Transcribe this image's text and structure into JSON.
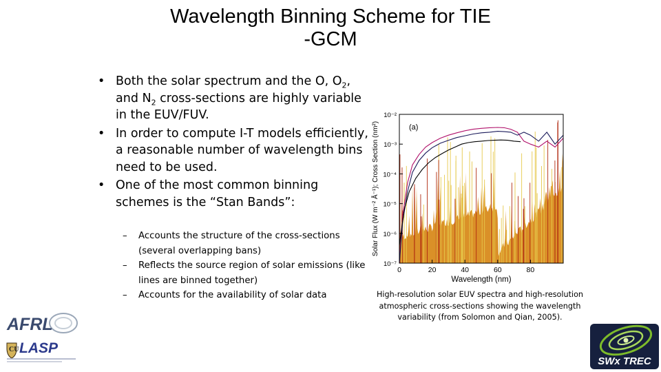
{
  "title": {
    "line1": "Wavelength Binning Scheme for TIE",
    "line2": "-GCM"
  },
  "bullets": [
    {
      "pre": "Both the solar spectrum and the O, O",
      "sub1": "2",
      "mid": ", and N",
      "sub2": "2",
      "post": " cross-sections are highly variable in the EUV/FUV."
    },
    {
      "text": "In order to compute I-T models efficiently, a reasonable number of wavelength bins need to be used."
    },
    {
      "text": "One of the most common binning schemes is the “Stan Bands”:"
    }
  ],
  "sub_bullets": [
    "Accounts the structure of the cross-sections (several overlapping bans)",
    "Reflects the source region of solar emissions (like lines are binned together)",
    "Accounts for the availability of solar data"
  ],
  "bullet_marker": "•",
  "dash_marker": "–",
  "chart_data": {
    "type": "line",
    "panel_label": "(a)",
    "xlabel": "Wavelength (nm)",
    "ylabel": "Solar Flux (W m⁻² Å⁻¹); Cross Section (nm²)",
    "xlim": [
      0,
      100
    ],
    "ylim_log10": [
      -7,
      -2
    ],
    "x_ticks": [
      "0",
      "20",
      "40",
      "60",
      "80"
    ],
    "y_ticks": [
      "10⁻²",
      "10⁻³",
      "10⁻⁴",
      "10⁻⁵",
      "10⁻⁶",
      "10⁻⁷"
    ],
    "series": [
      {
        "name": "cross-section (magenta)",
        "color": "#b0106a",
        "x": [
          0,
          2,
          5,
          8,
          12,
          16,
          20,
          25,
          30,
          35,
          40,
          45,
          50,
          55,
          60,
          64,
          68,
          72,
          76,
          80,
          85,
          90,
          95,
          100
        ],
        "log10y": [
          -7.0,
          -5.4,
          -4.3,
          -3.7,
          -3.35,
          -3.1,
          -2.95,
          -2.8,
          -2.7,
          -2.62,
          -2.55,
          -2.5,
          -2.47,
          -2.45,
          -2.44,
          -2.45,
          -2.5,
          -2.6,
          -2.9,
          -3.0,
          -3.1,
          -2.9,
          -3.1,
          -2.8
        ]
      },
      {
        "name": "cross-section (navy)",
        "color": "#1a1a5a",
        "x": [
          0,
          2,
          5,
          8,
          12,
          16,
          20,
          25,
          30,
          35,
          40,
          45,
          50,
          55,
          60,
          64,
          68,
          72,
          76,
          80,
          85,
          90,
          95,
          100
        ],
        "log10y": [
          -7.0,
          -5.6,
          -4.6,
          -3.95,
          -3.55,
          -3.3,
          -3.12,
          -2.97,
          -2.87,
          -2.78,
          -2.72,
          -2.66,
          -2.62,
          -2.6,
          -2.57,
          -2.58,
          -2.6,
          -2.7,
          -2.6,
          -2.7,
          -2.9,
          -2.6,
          -3.0,
          -2.7
        ]
      },
      {
        "name": "cross-section (black)",
        "color": "#000000",
        "x": [
          0,
          3,
          6,
          10,
          14,
          18,
          22,
          26,
          30,
          34,
          38,
          42,
          46,
          50,
          54,
          58,
          62,
          66,
          70,
          74
        ],
        "log10y": [
          -6.4,
          -5.2,
          -4.6,
          -4.15,
          -3.85,
          -3.62,
          -3.45,
          -3.32,
          -3.2,
          -3.1,
          -3.0,
          -2.95,
          -2.92,
          -2.9,
          -2.88,
          -2.87,
          -2.86,
          -2.87,
          -2.9,
          -2.92
        ]
      }
    ]
  },
  "caption": "High-resolution solar EUV spectra and high-resolution atmospheric cross-sections showing the wavelength variability (from Solomon and Qian, 2005).",
  "logos": {
    "afrl": "AFRL",
    "lasp": "LASP",
    "swx": "SWx TREC"
  },
  "colors": {
    "magenta": "#b0106a",
    "navy": "#1a1a5a",
    "orange": "#d88a1c",
    "red": "#b02a10",
    "yellow": "#e6c84a",
    "swx_green": "#7dbb2a"
  }
}
